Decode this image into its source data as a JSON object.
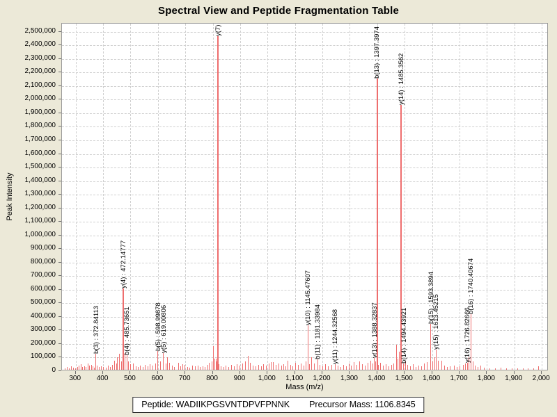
{
  "title": "Spectral View and Peptide Fragmentation Table",
  "footer": {
    "peptide_text": "Peptide: WADIIKPGSVNTDPVFPNNK",
    "precursor_text": "Precursor Mass: 1106.8345"
  },
  "chart_data": {
    "type": "bar",
    "title": "Spectral View and Peptide Fragmentation Table",
    "xlabel": "Mass (m/z)",
    "ylabel": "Peak Intensity",
    "xlim": [
      250,
      2025
    ],
    "ylim": [
      0,
      2560000
    ],
    "x_ticks": [
      300,
      400,
      500,
      600,
      700,
      800,
      900,
      1000,
      1100,
      1200,
      1300,
      1400,
      1500,
      1600,
      1700,
      1800,
      1900,
      2000
    ],
    "y_tick_step": 100000,
    "y_max_tick": 2500000,
    "grid": "dashed",
    "legend": "none",
    "peak_color": "#ee6e6e",
    "labeled_peaks": [
      {
        "label": "b(3) : 372.84113",
        "mz": 372.84113,
        "intensity": 120000
      },
      {
        "label": "y(4) : 472.14777",
        "mz": 472.14777,
        "intensity": 600000
      },
      {
        "label": "b(4) : 485.73651",
        "mz": 485.73651,
        "intensity": 110000
      },
      {
        "label": "b(5) : 598.99878",
        "mz": 598.99878,
        "intensity": 140000
      },
      {
        "label": "y(5) : 619.00806",
        "mz": 619.00806,
        "intensity": 125000
      },
      {
        "label": "y(7) :",
        "mz": 817.5,
        "intensity": 2460000
      },
      {
        "label": "y(10) : 1145.47607",
        "mz": 1145.47607,
        "intensity": 330000
      },
      {
        "label": "b(11) : 1181.33984",
        "mz": 1181.33984,
        "intensity": 75000
      },
      {
        "label": "y(11) : 1244.32568",
        "mz": 1244.32568,
        "intensity": 40000
      },
      {
        "label": "y(13) : 1388.32837",
        "mz": 1388.32837,
        "intensity": 85000
      },
      {
        "label": "b(13) : 1397.3974",
        "mz": 1397.3974,
        "intensity": 2145000
      },
      {
        "label": "y(14) : 1485.3562",
        "mz": 1485.3562,
        "intensity": 1950000
      },
      {
        "label": "b(14) : 1494.43921",
        "mz": 1494.43921,
        "intensity": 45000
      },
      {
        "label": "b(15) : 1593.3894",
        "mz": 1593.3894,
        "intensity": 340000
      },
      {
        "label": "y(15) : 1613.45215",
        "mz": 1613.45215,
        "intensity": 150000
      },
      {
        "label": "y(16) : 1726.82666",
        "mz": 1726.82666,
        "intensity": 50000
      },
      {
        "label": "b(16) : 1740.40674",
        "mz": 1740.40674,
        "intensity": 410000
      }
    ],
    "noise_peaks": [
      [
        260,
        12000
      ],
      [
        268,
        18000
      ],
      [
        276,
        10000
      ],
      [
        283,
        26000
      ],
      [
        291,
        15000
      ],
      [
        298,
        12000
      ],
      [
        305,
        20000
      ],
      [
        312,
        30000
      ],
      [
        318,
        41000
      ],
      [
        324,
        22000
      ],
      [
        330,
        27000
      ],
      [
        336,
        18000
      ],
      [
        343,
        48000
      ],
      [
        350,
        30000
      ],
      [
        356,
        35000
      ],
      [
        363,
        25000
      ],
      [
        368,
        15000
      ],
      [
        378,
        30000
      ],
      [
        385,
        20000
      ],
      [
        393,
        28000
      ],
      [
        400,
        22000
      ],
      [
        409,
        15000
      ],
      [
        417,
        30000
      ],
      [
        425,
        20000
      ],
      [
        433,
        35000
      ],
      [
        440,
        68000
      ],
      [
        447,
        45000
      ],
      [
        451,
        91000
      ],
      [
        458,
        120000
      ],
      [
        465,
        60000
      ],
      [
        479,
        125000
      ],
      [
        492,
        60000
      ],
      [
        500,
        40000
      ],
      [
        509,
        45000
      ],
      [
        518,
        25000
      ],
      [
        527,
        20000
      ],
      [
        535,
        30000
      ],
      [
        544,
        22000
      ],
      [
        553,
        35000
      ],
      [
        562,
        28000
      ],
      [
        571,
        40000
      ],
      [
        580,
        30000
      ],
      [
        590,
        45000
      ],
      [
        608,
        60000
      ],
      [
        628,
        45000
      ],
      [
        634,
        90000
      ],
      [
        641,
        50000
      ],
      [
        650,
        30000
      ],
      [
        660,
        20000
      ],
      [
        673,
        50000
      ],
      [
        681,
        25000
      ],
      [
        690,
        42000
      ],
      [
        698,
        35000
      ],
      [
        707,
        20000
      ],
      [
        715,
        15000
      ],
      [
        726,
        30000
      ],
      [
        735,
        25000
      ],
      [
        744,
        32000
      ],
      [
        753,
        20000
      ],
      [
        762,
        28000
      ],
      [
        771,
        22000
      ],
      [
        780,
        35000
      ],
      [
        787,
        50000
      ],
      [
        795,
        60000
      ],
      [
        801,
        175000
      ],
      [
        805,
        80000
      ],
      [
        810,
        82000
      ],
      [
        814,
        60000
      ],
      [
        822,
        40000
      ],
      [
        830,
        25000
      ],
      [
        839,
        20000
      ],
      [
        848,
        30000
      ],
      [
        858,
        22000
      ],
      [
        868,
        35000
      ],
      [
        878,
        28000
      ],
      [
        888,
        40000
      ],
      [
        898,
        30000
      ],
      [
        908,
        45000
      ],
      [
        918,
        60000
      ],
      [
        927,
        105000
      ],
      [
        936,
        50000
      ],
      [
        945,
        30000
      ],
      [
        955,
        25000
      ],
      [
        965,
        35000
      ],
      [
        975,
        28000
      ],
      [
        985,
        40000
      ],
      [
        995,
        30000
      ],
      [
        1005,
        45000
      ],
      [
        1012,
        55000
      ],
      [
        1020,
        57000
      ],
      [
        1030,
        35000
      ],
      [
        1040,
        48000
      ],
      [
        1050,
        30000
      ],
      [
        1058,
        40000
      ],
      [
        1066,
        25000
      ],
      [
        1074,
        66000
      ],
      [
        1082,
        35000
      ],
      [
        1090,
        28000
      ],
      [
        1100,
        50000
      ],
      [
        1110,
        35000
      ],
      [
        1120,
        45000
      ],
      [
        1130,
        30000
      ],
      [
        1140,
        60000
      ],
      [
        1152,
        40000
      ],
      [
        1160,
        90000
      ],
      [
        1170,
        45000
      ],
      [
        1190,
        35000
      ],
      [
        1200,
        28000
      ],
      [
        1210,
        40000
      ],
      [
        1220,
        25000
      ],
      [
        1232,
        35000
      ],
      [
        1255,
        30000
      ],
      [
        1265,
        22000
      ],
      [
        1275,
        35000
      ],
      [
        1285,
        28000
      ],
      [
        1295,
        45000
      ],
      [
        1305,
        30000
      ],
      [
        1315,
        55000
      ],
      [
        1325,
        35000
      ],
      [
        1335,
        60000
      ],
      [
        1345,
        40000
      ],
      [
        1355,
        30000
      ],
      [
        1365,
        50000
      ],
      [
        1375,
        65000
      ],
      [
        1382,
        45000
      ],
      [
        1393,
        60000
      ],
      [
        1403,
        35000
      ],
      [
        1410,
        50000
      ],
      [
        1420,
        30000
      ],
      [
        1430,
        40000
      ],
      [
        1440,
        25000
      ],
      [
        1450,
        35000
      ],
      [
        1458,
        45000
      ],
      [
        1469,
        185000
      ],
      [
        1475,
        80000
      ],
      [
        1480,
        134000
      ],
      [
        1502,
        60000
      ],
      [
        1510,
        35000
      ],
      [
        1520,
        25000
      ],
      [
        1530,
        40000
      ],
      [
        1540,
        20000
      ],
      [
        1550,
        30000
      ],
      [
        1560,
        25000
      ],
      [
        1570,
        45000
      ],
      [
        1580,
        55000
      ],
      [
        1600,
        60000
      ],
      [
        1608,
        90000
      ],
      [
        1620,
        65000
      ],
      [
        1633,
        67000
      ],
      [
        1645,
        30000
      ],
      [
        1655,
        20000
      ],
      [
        1665,
        25000
      ],
      [
        1680,
        30000
      ],
      [
        1690,
        22000
      ],
      [
        1700,
        28000
      ],
      [
        1712,
        35000
      ],
      [
        1720,
        45000
      ],
      [
        1733,
        90000
      ],
      [
        1748,
        60000
      ],
      [
        1755,
        30000
      ],
      [
        1765,
        20000
      ],
      [
        1777,
        31000
      ],
      [
        1790,
        15000
      ],
      [
        1810,
        12000
      ],
      [
        1830,
        10000
      ],
      [
        1850,
        15000
      ],
      [
        1870,
        10000
      ],
      [
        1890,
        12000
      ],
      [
        1910,
        8000
      ],
      [
        1930,
        10000
      ],
      [
        1950,
        12000
      ],
      [
        1970,
        8000
      ],
      [
        1987,
        25000
      ]
    ]
  }
}
